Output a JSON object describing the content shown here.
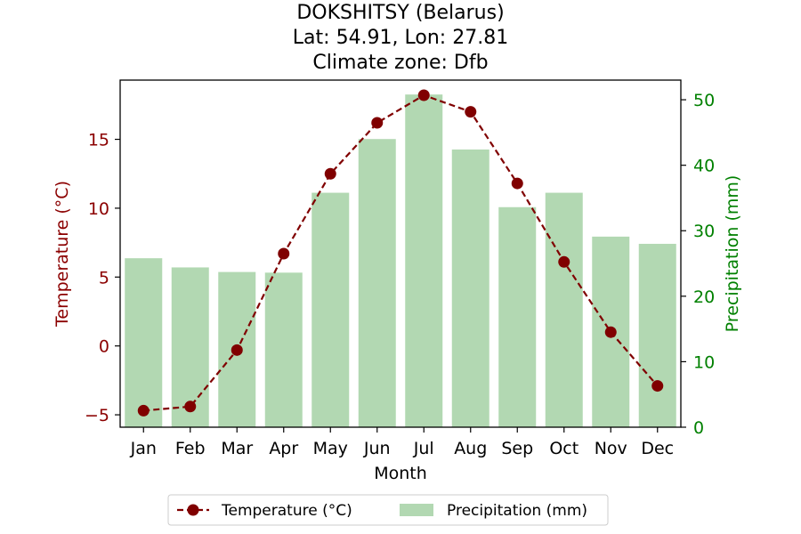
{
  "chart_data": {
    "type": "bar+line",
    "title_lines": [
      "DOKSHITSY (Belarus)",
      "Lat: 54.91, Lon: 27.81",
      "Climate zone: Dfb"
    ],
    "xlabel": "Month",
    "categories": [
      "Jan",
      "Feb",
      "Mar",
      "Apr",
      "May",
      "Jun",
      "Jul",
      "Aug",
      "Sep",
      "Oct",
      "Nov",
      "Dec"
    ],
    "temperature": {
      "name": "Temperature (°C)",
      "axis_label": "Temperature (°C)",
      "values": [
        -4.7,
        -4.4,
        -0.3,
        6.7,
        12.5,
        16.2,
        18.2,
        17.0,
        11.8,
        6.1,
        1.0,
        -2.9
      ],
      "ylim": [
        -5.9,
        19.3
      ],
      "ticks": [
        -5,
        0,
        5,
        10,
        15
      ],
      "tick_labels": [
        "−5",
        "0",
        "5",
        "10",
        "15"
      ],
      "color": "#800000",
      "label_color": "#8b0000"
    },
    "precipitation": {
      "name": "Precipitation (mm)",
      "axis_label": "Precipitation (mm)",
      "values": [
        25.8,
        24.4,
        23.7,
        23.6,
        35.8,
        44.0,
        50.8,
        42.4,
        33.6,
        35.8,
        29.1,
        28.0
      ],
      "ylim": [
        0,
        53
      ],
      "ticks": [
        0,
        10,
        20,
        30,
        40,
        50
      ],
      "tick_labels": [
        "0",
        "10",
        "20",
        "30",
        "40",
        "50"
      ],
      "color": "#b2d8b2",
      "label_color": "#008000"
    },
    "legend": {
      "placement": "bottom-center",
      "items": [
        "Temperature (°C)",
        "Precipitation (mm)"
      ]
    }
  }
}
